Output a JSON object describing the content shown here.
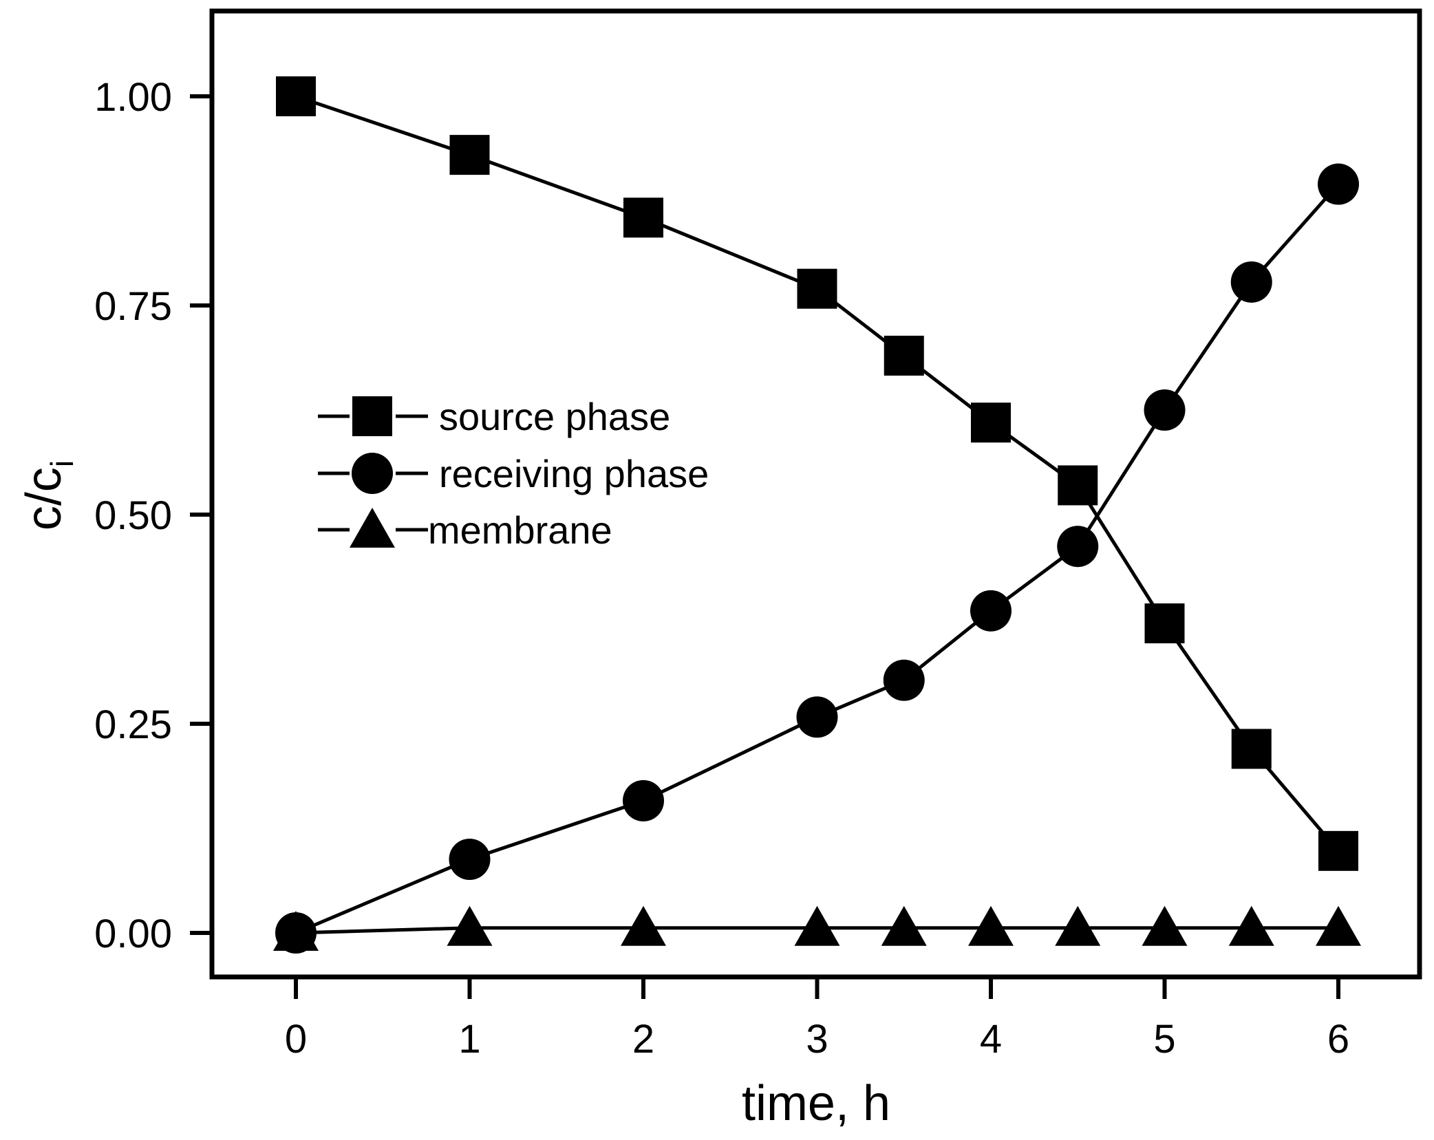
{
  "chart_data": {
    "type": "line",
    "title": "",
    "xlabel": "time, h",
    "ylabel_main": "c/c",
    "ylabel_sub": "i",
    "xlim": [
      -0.5,
      6.5
    ],
    "ylim": [
      -0.05,
      1.1
    ],
    "xticks": [
      0,
      1,
      2,
      3,
      4,
      5,
      6
    ],
    "xtick_labels": [
      "0",
      "1",
      "2",
      "3",
      "4",
      "5",
      "6"
    ],
    "yticks": [
      0,
      0.25,
      0.5,
      0.75,
      1.0
    ],
    "ytick_labels": [
      "0.00",
      "0.25",
      "0.50",
      "0.75",
      "1.00"
    ],
    "grid": false,
    "legend_position": "center-left",
    "colors": {
      "line": "#000000",
      "marker": "#000000",
      "frame": "#000000"
    },
    "series": [
      {
        "name": "source phase",
        "marker": "square",
        "x": [
          0,
          1,
          2,
          3,
          3.5,
          4,
          4.5,
          5,
          5.5,
          6
        ],
        "y": [
          1.0,
          0.93,
          0.855,
          0.77,
          0.69,
          0.61,
          0.535,
          0.37,
          0.22,
          0.098
        ]
      },
      {
        "name": "receiving phase",
        "marker": "circle",
        "x": [
          0,
          1,
          2,
          3,
          3.5,
          4,
          4.5,
          5,
          5.5,
          6
        ],
        "y": [
          0.0,
          0.088,
          0.158,
          0.258,
          0.302,
          0.385,
          0.462,
          0.625,
          0.778,
          0.895
        ]
      },
      {
        "name": "membrane",
        "marker": "triangle",
        "x": [
          0,
          1,
          2,
          3,
          3.5,
          4,
          4.5,
          5,
          5.5,
          6
        ],
        "y": [
          0.0,
          0.006,
          0.006,
          0.006,
          0.006,
          0.006,
          0.006,
          0.006,
          0.006,
          0.006
        ]
      }
    ]
  }
}
